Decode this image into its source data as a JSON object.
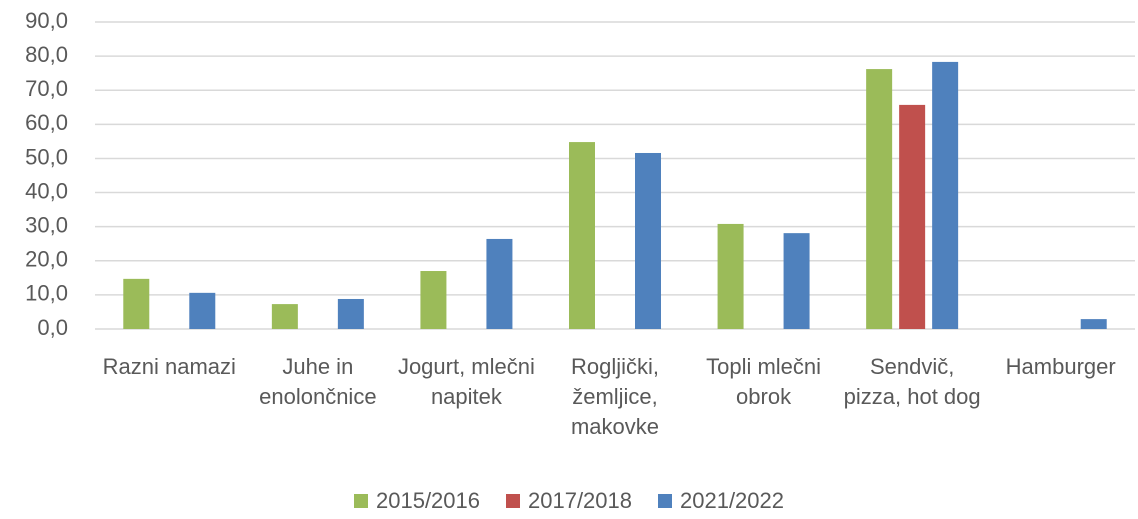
{
  "chart_data": {
    "type": "bar",
    "categories": [
      "Razni namazi",
      "Juhe in enolončnice",
      "Jogurt, mlečni napitek",
      "Rogljički, žemljice, makovke",
      "Topli mlečni obrok",
      "Sendvič, pizza, hot dog",
      "Hamburger"
    ],
    "series": [
      {
        "name": "2015/2016",
        "color": "#9bbb59",
        "values": [
          14.7,
          7.3,
          17.0,
          54.8,
          30.8,
          76.2,
          null
        ]
      },
      {
        "name": "2017/2018",
        "color": "#c0504d",
        "values": [
          null,
          null,
          null,
          null,
          null,
          65.7,
          null
        ]
      },
      {
        "name": "2021/2022",
        "color": "#4f81bd",
        "values": [
          10.6,
          8.8,
          26.4,
          51.6,
          28.1,
          78.3,
          2.9
        ]
      }
    ],
    "ylim": [
      0,
      90
    ],
    "yticks": [
      {
        "value": 0,
        "label": "0,0"
      },
      {
        "value": 10,
        "label": "10,0"
      },
      {
        "value": 20,
        "label": "20,0"
      },
      {
        "value": 30,
        "label": "30,0"
      },
      {
        "value": 40,
        "label": "40,0"
      },
      {
        "value": 50,
        "label": "50,0"
      },
      {
        "value": 60,
        "label": "60,0"
      },
      {
        "value": 70,
        "label": "70,0"
      },
      {
        "value": 80,
        "label": "80,0"
      },
      {
        "value": 90,
        "label": "90,0"
      }
    ],
    "grid": true,
    "legend": "bottom"
  }
}
